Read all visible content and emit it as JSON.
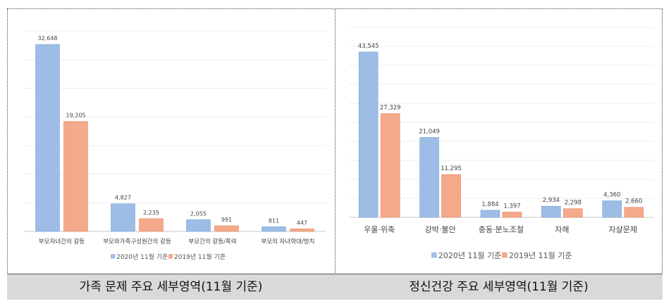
{
  "chart_data": [
    {
      "type": "bar",
      "categories": [
        "부모자녀간의 갈등",
        "부모와가족구성원간의 갈등",
        "부모간의 갈등/폭력",
        "부모의 자녀학대/방치"
      ],
      "series": [
        {
          "name": "2020년 11월 기준",
          "values": [
            32648,
            4827,
            2055,
            811
          ],
          "labels": [
            "32,648",
            "4,827",
            "2,055",
            "811"
          ]
        },
        {
          "name": "2019년 11월 기준",
          "values": [
            19205,
            2235,
            991,
            447
          ],
          "labels": [
            "19,205",
            "2,235",
            "991",
            "447"
          ]
        }
      ],
      "ylim": [
        0,
        35000
      ],
      "grid": true,
      "legend": "bottom",
      "caption": "가족 문제 주요 세부영역(11월 기준)"
    },
    {
      "type": "bar",
      "categories": [
        "우울·위축",
        "강박·불안",
        "충동·분노조절",
        "자해",
        "자살문제"
      ],
      "series": [
        {
          "name": "2020년 11월 기준",
          "values": [
            43545,
            21049,
            1884,
            2934,
            4360
          ],
          "labels": [
            "43,545",
            "21,049",
            "1,884",
            "2,934",
            "4,360"
          ]
        },
        {
          "name": "2019년 11월 기준",
          "values": [
            27329,
            11295,
            1397,
            2298,
            2660
          ],
          "labels": [
            "27,329",
            "11,295",
            "1,397",
            "2,298",
            "2,660"
          ]
        }
      ],
      "ylim": [
        0,
        50000
      ],
      "grid": true,
      "legend": "bottom",
      "caption": "정신건강 주요 세부영역(11월 기준)"
    }
  ],
  "colors": {
    "series_2020": "#9dbde6",
    "series_2019": "#f4a98a"
  }
}
